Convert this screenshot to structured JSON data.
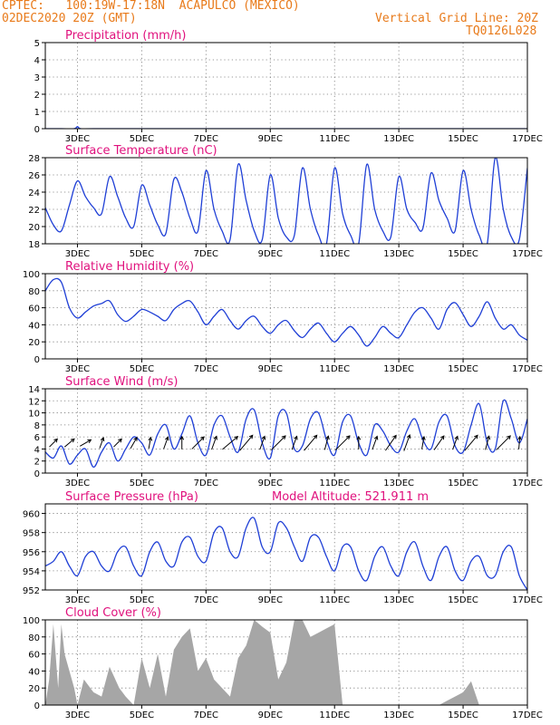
{
  "header": {
    "line1_left": "CPTEC:   100:19W-17:18N  ACAPULCO (MEXICO)",
    "line2_left": "02DEC2020 20Z (GMT)",
    "line2_right": "Vertical Grid Line: 20Z",
    "line3_right": "TQ0126L028"
  },
  "colors": {
    "header": "#e87a1a",
    "title": "#e0117d",
    "line": "#1f3fd6",
    "cloud": "#a6a6a6"
  },
  "x_ticks": [
    "3DEC",
    "5DEC",
    "7DEC",
    "9DEC",
    "11DEC",
    "13DEC",
    "15DEC",
    "17DEC"
  ],
  "chart_data": [
    {
      "id": "precip",
      "type": "line",
      "title": "Precipitation (mm/h)",
      "ylim": [
        0,
        5
      ],
      "yticks": [
        "0",
        "1",
        "2",
        "3",
        "4",
        "5"
      ],
      "xlim": [
        0,
        15
      ],
      "x": [
        0,
        0.5,
        0.9,
        1.0,
        1.1,
        1.5,
        3,
        6,
        9,
        12,
        15
      ],
      "values": [
        0,
        0,
        0,
        0.12,
        0,
        0,
        0,
        0,
        0,
        0,
        0
      ]
    },
    {
      "id": "temp",
      "type": "line",
      "title": "Surface Temperature (nC)",
      "ylim": [
        18,
        28
      ],
      "yticks": [
        "18",
        "20",
        "22",
        "24",
        "26",
        "28"
      ],
      "xlim": [
        0,
        15
      ],
      "x": [
        0,
        0.25,
        0.5,
        0.75,
        1.0,
        1.25,
        1.5,
        1.75,
        2.0,
        2.25,
        2.5,
        2.75,
        3.0,
        3.25,
        3.5,
        3.75,
        4.0,
        4.25,
        4.5,
        4.75,
        5.0,
        5.25,
        5.5,
        5.75,
        6.0,
        6.25,
        6.5,
        6.75,
        7.0,
        7.25,
        7.5,
        7.75,
        8.0,
        8.25,
        8.5,
        8.75,
        9.0,
        9.25,
        9.5,
        9.75,
        10.0,
        10.25,
        10.5,
        10.75,
        11.0,
        11.25,
        11.5,
        11.75,
        12.0,
        12.25,
        12.5,
        12.75,
        13.0,
        13.25,
        13.5,
        13.75,
        14.0,
        14.25,
        14.5,
        14.75,
        15.0
      ],
      "values": [
        22.2,
        20.2,
        19.5,
        22.5,
        25.3,
        23.5,
        22.2,
        21.5,
        25.8,
        23.5,
        21.0,
        20.0,
        24.8,
        22.5,
        20.2,
        19.2,
        25.5,
        24.0,
        21.0,
        19.5,
        26.5,
        22.0,
        19.5,
        18.5,
        27.2,
        23.0,
        19.5,
        18.5,
        26.0,
        21.0,
        18.8,
        19.0,
        26.8,
        22.0,
        19.0,
        18.0,
        26.8,
        21.5,
        19.0,
        18.0,
        27.2,
        22.0,
        19.5,
        18.8,
        25.8,
        22.0,
        20.5,
        19.8,
        26.2,
        23.0,
        21.0,
        19.5,
        26.5,
        22.0,
        19.0,
        18.0,
        28.0,
        22.0,
        18.8,
        18.5,
        26.8
      ]
    },
    {
      "id": "rh",
      "type": "line",
      "title": "Relative Humidity (%)",
      "ylim": [
        0,
        100
      ],
      "yticks": [
        "0",
        "20",
        "40",
        "60",
        "80",
        "100"
      ],
      "xlim": [
        0,
        15
      ],
      "x": [
        0,
        0.25,
        0.5,
        0.75,
        1.0,
        1.25,
        1.5,
        1.75,
        2.0,
        2.25,
        2.5,
        2.75,
        3.0,
        3.25,
        3.5,
        3.75,
        4.0,
        4.25,
        4.5,
        4.75,
        5.0,
        5.25,
        5.5,
        5.75,
        6.0,
        6.25,
        6.5,
        6.75,
        7.0,
        7.25,
        7.5,
        7.75,
        8.0,
        8.25,
        8.5,
        8.75,
        9.0,
        9.25,
        9.5,
        9.75,
        10.0,
        10.25,
        10.5,
        10.75,
        11.0,
        11.25,
        11.5,
        11.75,
        12.0,
        12.25,
        12.5,
        12.75,
        13.0,
        13.25,
        13.5,
        13.75,
        14.0,
        14.25,
        14.5,
        14.75,
        15.0
      ],
      "values": [
        80,
        93,
        90,
        60,
        48,
        55,
        62,
        65,
        68,
        52,
        44,
        50,
        58,
        55,
        50,
        45,
        58,
        65,
        68,
        55,
        40,
        50,
        58,
        45,
        35,
        45,
        50,
        38,
        30,
        40,
        45,
        33,
        25,
        35,
        42,
        30,
        20,
        30,
        38,
        28,
        15,
        25,
        38,
        30,
        25,
        40,
        55,
        60,
        48,
        35,
        58,
        66,
        52,
        38,
        50,
        67,
        48,
        35,
        40,
        28,
        22
      ]
    },
    {
      "id": "wind",
      "type": "line",
      "title": "Surface Wind (m/s)",
      "ylim": [
        0,
        14
      ],
      "yticks": [
        "0",
        "2",
        "4",
        "6",
        "8",
        "10",
        "12",
        "14"
      ],
      "xlim": [
        0,
        15
      ],
      "x": [
        0,
        0.25,
        0.5,
        0.75,
        1.0,
        1.25,
        1.5,
        1.75,
        2.0,
        2.25,
        2.5,
        2.75,
        3.0,
        3.25,
        3.5,
        3.75,
        4.0,
        4.25,
        4.5,
        4.75,
        5.0,
        5.25,
        5.5,
        5.75,
        6.0,
        6.25,
        6.5,
        6.75,
        7.0,
        7.25,
        7.5,
        7.75,
        8.0,
        8.25,
        8.5,
        8.75,
        9.0,
        9.25,
        9.5,
        9.75,
        10.0,
        10.25,
        10.5,
        10.75,
        11.0,
        11.25,
        11.5,
        11.75,
        12.0,
        12.25,
        12.5,
        12.75,
        13.0,
        13.25,
        13.5,
        13.75,
        14.0,
        14.25,
        14.5,
        14.75,
        15.0
      ],
      "values": [
        3.5,
        2.5,
        4.5,
        1.5,
        3.0,
        4.0,
        1.0,
        3.5,
        5.0,
        2.0,
        4.0,
        6.0,
        5.0,
        3.0,
        6.5,
        8.0,
        4.0,
        6.5,
        9.5,
        5.0,
        3.0,
        8.0,
        9.5,
        6.0,
        3.5,
        9.0,
        10.5,
        5.0,
        2.5,
        9.5,
        10.0,
        4.0,
        4.5,
        9.0,
        10.0,
        5.5,
        3.0,
        8.5,
        9.5,
        5.0,
        3.0,
        8.0,
        7.0,
        4.5,
        3.5,
        7.0,
        9.0,
        5.5,
        4.0,
        8.5,
        9.5,
        4.5,
        3.5,
        8.0,
        11.5,
        5.0,
        4.0,
        12.0,
        9.0,
        5.0,
        9.0
      ],
      "arrows": [
        {
          "day": 0.25,
          "speed": 4,
          "dir": 225
        },
        {
          "day": 0.75,
          "speed": 5,
          "dir": 230
        },
        {
          "day": 1.25,
          "speed": 5,
          "dir": 240
        },
        {
          "day": 1.75,
          "speed": 4,
          "dir": 200
        },
        {
          "day": 2.25,
          "speed": 4,
          "dir": 225
        },
        {
          "day": 2.75,
          "speed": 5,
          "dir": 210
        },
        {
          "day": 3.25,
          "speed": 4,
          "dir": 190
        },
        {
          "day": 3.75,
          "speed": 5,
          "dir": 200
        },
        {
          "day": 4.25,
          "speed": 5,
          "dir": 180
        },
        {
          "day": 4.75,
          "speed": 8,
          "dir": 225
        },
        {
          "day": 5.25,
          "speed": 6,
          "dir": 200
        },
        {
          "day": 5.75,
          "speed": 10,
          "dir": 230
        },
        {
          "day": 6.25,
          "speed": 10,
          "dir": 220
        },
        {
          "day": 6.75,
          "speed": 6,
          "dir": 200
        },
        {
          "day": 7.25,
          "speed": 10,
          "dir": 225
        },
        {
          "day": 7.75,
          "speed": 6,
          "dir": 200
        },
        {
          "day": 8.25,
          "speed": 10,
          "dir": 220
        },
        {
          "day": 8.75,
          "speed": 6,
          "dir": 195
        },
        {
          "day": 9.25,
          "speed": 10,
          "dir": 225
        },
        {
          "day": 9.75,
          "speed": 5,
          "dir": 180
        },
        {
          "day": 10.25,
          "speed": 6,
          "dir": 200
        },
        {
          "day": 10.75,
          "speed": 9,
          "dir": 215
        },
        {
          "day": 11.25,
          "speed": 8,
          "dir": 200
        },
        {
          "day": 11.75,
          "speed": 5,
          "dir": 190
        },
        {
          "day": 12.25,
          "speed": 8,
          "dir": 215
        },
        {
          "day": 12.75,
          "speed": 6,
          "dir": 200
        },
        {
          "day": 13.25,
          "speed": 10,
          "dir": 220
        },
        {
          "day": 13.75,
          "speed": 6,
          "dir": 195
        },
        {
          "day": 14.25,
          "speed": 10,
          "dir": 225
        },
        {
          "day": 14.75,
          "speed": 5,
          "dir": 185
        }
      ]
    },
    {
      "id": "pres",
      "type": "line",
      "title": "Surface Pressure (hPa)",
      "annotation": "Model Altitude: 521.911 m",
      "ylim": [
        952,
        961
      ],
      "yticks": [
        "952",
        "954",
        "956",
        "958",
        "960"
      ],
      "xlim": [
        0,
        15
      ],
      "x": [
        0,
        0.25,
        0.5,
        0.75,
        1.0,
        1.25,
        1.5,
        1.75,
        2.0,
        2.25,
        2.5,
        2.75,
        3.0,
        3.25,
        3.5,
        3.75,
        4.0,
        4.25,
        4.5,
        4.75,
        5.0,
        5.25,
        5.5,
        5.75,
        6.0,
        6.25,
        6.5,
        6.75,
        7.0,
        7.25,
        7.5,
        7.75,
        8.0,
        8.25,
        8.5,
        8.75,
        9.0,
        9.25,
        9.5,
        9.75,
        10.0,
        10.25,
        10.5,
        10.75,
        11.0,
        11.25,
        11.5,
        11.75,
        12.0,
        12.25,
        12.5,
        12.75,
        13.0,
        13.25,
        13.5,
        13.75,
        14.0,
        14.25,
        14.5,
        14.75,
        15.0
      ],
      "values": [
        954.5,
        955.0,
        956.0,
        954.5,
        953.5,
        955.5,
        956.0,
        954.5,
        954.0,
        956.0,
        956.5,
        954.5,
        953.5,
        956.0,
        957.0,
        955.0,
        954.5,
        957.0,
        957.5,
        955.5,
        955.0,
        958.0,
        958.5,
        956.0,
        955.5,
        958.5,
        959.5,
        956.5,
        956.0,
        959.0,
        958.5,
        956.5,
        955.0,
        957.5,
        957.5,
        955.5,
        954.0,
        956.5,
        956.5,
        954.0,
        953.0,
        955.5,
        956.5,
        954.5,
        953.5,
        956.0,
        957.0,
        954.5,
        953.0,
        955.5,
        956.5,
        954.0,
        953.0,
        955.0,
        955.5,
        953.5,
        953.5,
        956.0,
        956.5,
        953.5,
        952.0
      ]
    },
    {
      "id": "cloud",
      "type": "area",
      "title": "Cloud Cover (%)",
      "ylim": [
        0,
        100
      ],
      "yticks": [
        "0",
        "20",
        "40",
        "60",
        "80",
        "100"
      ],
      "xlim": [
        0,
        15
      ],
      "x": [
        0,
        0.12,
        0.25,
        0.4,
        0.5,
        0.6,
        0.75,
        0.9,
        1.0,
        1.2,
        1.5,
        1.75,
        2.0,
        2.3,
        2.5,
        2.75,
        3.0,
        3.25,
        3.5,
        3.75,
        4.0,
        4.25,
        4.5,
        4.75,
        5.0,
        5.25,
        5.5,
        5.75,
        6.0,
        6.25,
        6.5,
        6.75,
        7.0,
        7.25,
        7.5,
        7.75,
        8.0,
        8.25,
        8.5,
        8.75,
        9.0,
        9.25,
        9.5,
        10.0,
        11.0,
        12.0,
        12.25,
        12.5,
        12.75,
        13.0,
        13.25,
        13.5,
        14.0,
        14.5,
        15.0
      ],
      "values": [
        0,
        30,
        95,
        20,
        95,
        60,
        40,
        20,
        0,
        30,
        15,
        10,
        45,
        20,
        10,
        0,
        55,
        20,
        60,
        10,
        65,
        80,
        90,
        40,
        55,
        30,
        20,
        10,
        55,
        70,
        100,
        92,
        85,
        30,
        50,
        100,
        100,
        80,
        85,
        90,
        95,
        0,
        0,
        0,
        0,
        0,
        0,
        5,
        10,
        15,
        28,
        0,
        0,
        0,
        0
      ]
    }
  ]
}
